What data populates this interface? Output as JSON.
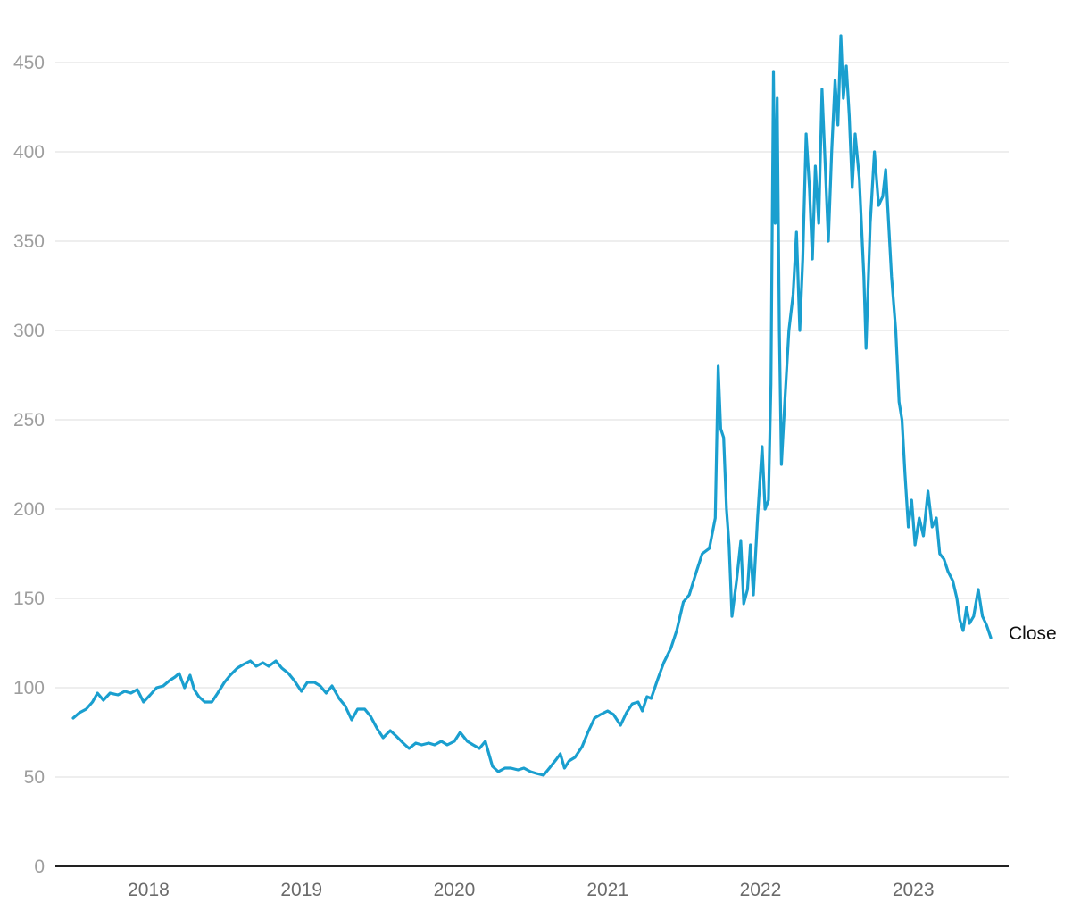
{
  "chart_data": {
    "type": "line",
    "title": "",
    "xlabel": "",
    "ylabel": "",
    "ylim": [
      0,
      460
    ],
    "xlim": [
      "2017-07-05",
      "2023-07-05"
    ],
    "grid": true,
    "yticks": [
      {
        "value": 0,
        "label": "0"
      },
      {
        "value": 50,
        "label": "50"
      },
      {
        "value": 100,
        "label": "100"
      },
      {
        "value": 150,
        "label": "150"
      },
      {
        "value": 200,
        "label": "200"
      },
      {
        "value": 250,
        "label": "250"
      },
      {
        "value": 300,
        "label": "300"
      },
      {
        "value": 350,
        "label": "350"
      },
      {
        "value": 400,
        "label": "400"
      },
      {
        "value": 450,
        "label": "450"
      }
    ],
    "xticks": [
      {
        "date": "2018-01-01",
        "label": "2018"
      },
      {
        "date": "2019-01-01",
        "label": "2019"
      },
      {
        "date": "2020-01-01",
        "label": "2020"
      },
      {
        "date": "2021-01-01",
        "label": "2021"
      },
      {
        "date": "2022-01-01",
        "label": "2022"
      },
      {
        "date": "2023-01-01",
        "label": "2023"
      }
    ],
    "series": [
      {
        "name": "Close",
        "color": "#1a9fcf",
        "points": [
          [
            "2017-07-05",
            83
          ],
          [
            "2017-07-20",
            86
          ],
          [
            "2017-08-05",
            88
          ],
          [
            "2017-08-20",
            92
          ],
          [
            "2017-09-01",
            97
          ],
          [
            "2017-09-15",
            93
          ],
          [
            "2017-10-01",
            97
          ],
          [
            "2017-10-20",
            96
          ],
          [
            "2017-11-05",
            98
          ],
          [
            "2017-11-20",
            97
          ],
          [
            "2017-12-05",
            99
          ],
          [
            "2017-12-20",
            92
          ],
          [
            "2018-01-05",
            96
          ],
          [
            "2018-01-20",
            100
          ],
          [
            "2018-02-05",
            101
          ],
          [
            "2018-02-20",
            104
          ],
          [
            "2018-03-05",
            106
          ],
          [
            "2018-03-15",
            108
          ],
          [
            "2018-03-28",
            100
          ],
          [
            "2018-04-10",
            107
          ],
          [
            "2018-04-20",
            99
          ],
          [
            "2018-05-01",
            95
          ],
          [
            "2018-05-15",
            92
          ],
          [
            "2018-06-01",
            92
          ],
          [
            "2018-06-15",
            97
          ],
          [
            "2018-07-01",
            103
          ],
          [
            "2018-07-15",
            107
          ],
          [
            "2018-08-01",
            111
          ],
          [
            "2018-08-15",
            113
          ],
          [
            "2018-09-01",
            115
          ],
          [
            "2018-09-15",
            112
          ],
          [
            "2018-10-01",
            114
          ],
          [
            "2018-10-15",
            112
          ],
          [
            "2018-11-01",
            115
          ],
          [
            "2018-11-15",
            111
          ],
          [
            "2018-12-01",
            108
          ],
          [
            "2018-12-15",
            104
          ],
          [
            "2019-01-01",
            98
          ],
          [
            "2019-01-15",
            103
          ],
          [
            "2019-02-01",
            103
          ],
          [
            "2019-02-15",
            101
          ],
          [
            "2019-03-01",
            97
          ],
          [
            "2019-03-15",
            101
          ],
          [
            "2019-04-01",
            94
          ],
          [
            "2019-04-15",
            90
          ],
          [
            "2019-05-01",
            82
          ],
          [
            "2019-05-15",
            88
          ],
          [
            "2019-06-01",
            88
          ],
          [
            "2019-06-15",
            84
          ],
          [
            "2019-07-01",
            77
          ],
          [
            "2019-07-15",
            72
          ],
          [
            "2019-08-01",
            76
          ],
          [
            "2019-08-15",
            73
          ],
          [
            "2019-09-01",
            69
          ],
          [
            "2019-09-15",
            66
          ],
          [
            "2019-10-01",
            69
          ],
          [
            "2019-10-15",
            68
          ],
          [
            "2019-11-01",
            69
          ],
          [
            "2019-11-15",
            68
          ],
          [
            "2019-12-01",
            70
          ],
          [
            "2019-12-15",
            68
          ],
          [
            "2020-01-01",
            70
          ],
          [
            "2020-01-15",
            75
          ],
          [
            "2020-02-01",
            70
          ],
          [
            "2020-02-15",
            68
          ],
          [
            "2020-03-01",
            66
          ],
          [
            "2020-03-15",
            70
          ],
          [
            "2020-04-01",
            56
          ],
          [
            "2020-04-15",
            53
          ],
          [
            "2020-05-01",
            55
          ],
          [
            "2020-05-15",
            55
          ],
          [
            "2020-06-01",
            54
          ],
          [
            "2020-06-15",
            55
          ],
          [
            "2020-07-01",
            53
          ],
          [
            "2020-07-15",
            52
          ],
          [
            "2020-08-01",
            51
          ],
          [
            "2020-08-15",
            55
          ],
          [
            "2020-09-01",
            60
          ],
          [
            "2020-09-10",
            63
          ],
          [
            "2020-09-20",
            55
          ],
          [
            "2020-10-01",
            59
          ],
          [
            "2020-10-15",
            61
          ],
          [
            "2020-11-01",
            67
          ],
          [
            "2020-11-15",
            75
          ],
          [
            "2020-12-01",
            83
          ],
          [
            "2020-12-15",
            85
          ],
          [
            "2021-01-01",
            87
          ],
          [
            "2021-01-15",
            85
          ],
          [
            "2021-02-01",
            79
          ],
          [
            "2021-02-15",
            86
          ],
          [
            "2021-03-01",
            91
          ],
          [
            "2021-03-15",
            92
          ],
          [
            "2021-03-25",
            87
          ],
          [
            "2021-04-05",
            95
          ],
          [
            "2021-04-15",
            94
          ],
          [
            "2021-05-01",
            105
          ],
          [
            "2021-05-15",
            114
          ],
          [
            "2021-06-01",
            122
          ],
          [
            "2021-06-15",
            132
          ],
          [
            "2021-07-01",
            148
          ],
          [
            "2021-07-15",
            152
          ],
          [
            "2021-08-01",
            165
          ],
          [
            "2021-08-15",
            175
          ],
          [
            "2021-09-01",
            178
          ],
          [
            "2021-09-15",
            195
          ],
          [
            "2021-09-22",
            280
          ],
          [
            "2021-09-28",
            245
          ],
          [
            "2021-10-05",
            240
          ],
          [
            "2021-10-12",
            200
          ],
          [
            "2021-10-18",
            180
          ],
          [
            "2021-10-25",
            140
          ],
          [
            "2021-11-05",
            160
          ],
          [
            "2021-11-15",
            182
          ],
          [
            "2021-11-22",
            147
          ],
          [
            "2021-12-01",
            155
          ],
          [
            "2021-12-08",
            180
          ],
          [
            "2021-12-15",
            152
          ],
          [
            "2021-12-25",
            195
          ],
          [
            "2022-01-05",
            235
          ],
          [
            "2022-01-12",
            200
          ],
          [
            "2022-01-20",
            205
          ],
          [
            "2022-01-26",
            270
          ],
          [
            "2022-02-01",
            445
          ],
          [
            "2022-02-05",
            360
          ],
          [
            "2022-02-10",
            430
          ],
          [
            "2022-02-15",
            300
          ],
          [
            "2022-02-20",
            225
          ],
          [
            "2022-02-28",
            260
          ],
          [
            "2022-03-10",
            300
          ],
          [
            "2022-03-20",
            320
          ],
          [
            "2022-03-28",
            355
          ],
          [
            "2022-04-05",
            300
          ],
          [
            "2022-04-12",
            340
          ],
          [
            "2022-04-20",
            410
          ],
          [
            "2022-04-28",
            380
          ],
          [
            "2022-05-05",
            340
          ],
          [
            "2022-05-12",
            392
          ],
          [
            "2022-05-20",
            360
          ],
          [
            "2022-05-28",
            435
          ],
          [
            "2022-06-05",
            390
          ],
          [
            "2022-06-12",
            350
          ],
          [
            "2022-06-20",
            400
          ],
          [
            "2022-06-28",
            440
          ],
          [
            "2022-07-05",
            415
          ],
          [
            "2022-07-12",
            465
          ],
          [
            "2022-07-18",
            430
          ],
          [
            "2022-07-25",
            448
          ],
          [
            "2022-08-01",
            420
          ],
          [
            "2022-08-08",
            380
          ],
          [
            "2022-08-15",
            410
          ],
          [
            "2022-08-25",
            385
          ],
          [
            "2022-09-05",
            330
          ],
          [
            "2022-09-10",
            290
          ],
          [
            "2022-09-20",
            360
          ],
          [
            "2022-09-30",
            400
          ],
          [
            "2022-10-10",
            370
          ],
          [
            "2022-10-20",
            375
          ],
          [
            "2022-10-27",
            390
          ],
          [
            "2022-11-03",
            360
          ],
          [
            "2022-11-10",
            330
          ],
          [
            "2022-11-20",
            300
          ],
          [
            "2022-11-28",
            260
          ],
          [
            "2022-12-05",
            250
          ],
          [
            "2022-12-12",
            220
          ],
          [
            "2022-12-20",
            190
          ],
          [
            "2022-12-28",
            205
          ],
          [
            "2023-01-05",
            180
          ],
          [
            "2023-01-15",
            195
          ],
          [
            "2023-01-25",
            185
          ],
          [
            "2023-02-05",
            210
          ],
          [
            "2023-02-15",
            190
          ],
          [
            "2023-02-25",
            195
          ],
          [
            "2023-03-05",
            175
          ],
          [
            "2023-03-15",
            172
          ],
          [
            "2023-03-25",
            165
          ],
          [
            "2023-04-05",
            160
          ],
          [
            "2023-04-15",
            150
          ],
          [
            "2023-04-22",
            138
          ],
          [
            "2023-04-30",
            132
          ],
          [
            "2023-05-08",
            145
          ],
          [
            "2023-05-15",
            136
          ],
          [
            "2023-05-25",
            140
          ],
          [
            "2023-06-05",
            155
          ],
          [
            "2023-06-15",
            140
          ],
          [
            "2023-06-25",
            135
          ],
          [
            "2023-07-05",
            128
          ]
        ]
      }
    ]
  }
}
